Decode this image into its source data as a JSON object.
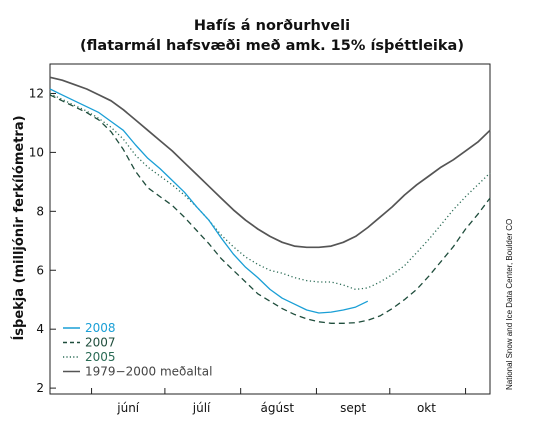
{
  "chart_data": {
    "type": "line",
    "title": "Hafís á norðurhveli",
    "subtitle": "(flatarmál hafsvæði með amk. 15% ísþéttleika)",
    "ylabel": "Ísþekja (milljónir ferkílómetra)",
    "xlabel": "",
    "credit": "National Snow and Ice Data Center, Boulder CO",
    "ylim": [
      2,
      13
    ],
    "yticks": [
      "2",
      "4",
      "6",
      "8",
      "10",
      "12"
    ],
    "x_unit": "day of year",
    "xlim": [
      135,
      315
    ],
    "month_labels": [
      "júní",
      "júlí",
      "ágúst",
      "sept",
      "okt"
    ],
    "month_label_x": [
      167,
      197,
      228,
      259,
      289
    ],
    "month_ticks": [
      152,
      182,
      213,
      244,
      274,
      305
    ],
    "legend_position": "bottom-left",
    "grid": false,
    "series": [
      {
        "name": "2008",
        "color": "#1a9fd6",
        "style": "solid",
        "x": [
          135,
          140,
          145,
          150,
          155,
          160,
          165,
          170,
          175,
          180,
          185,
          190,
          195,
          200,
          205,
          210,
          215,
          220,
          225,
          230,
          235,
          240,
          245,
          250,
          255,
          260,
          265
        ],
        "y": [
          12.15,
          11.95,
          11.75,
          11.55,
          11.35,
          11.05,
          10.75,
          10.25,
          9.8,
          9.45,
          9.05,
          8.65,
          8.15,
          7.7,
          7.1,
          6.55,
          6.1,
          5.75,
          5.35,
          5.05,
          4.85,
          4.65,
          4.55,
          4.58,
          4.65,
          4.75,
          4.95
        ]
      },
      {
        "name": "2007",
        "color": "#1f4d3c",
        "style": "dashed",
        "x": [
          135,
          140,
          145,
          150,
          155,
          160,
          165,
          170,
          175,
          180,
          185,
          190,
          195,
          200,
          205,
          210,
          215,
          220,
          225,
          230,
          235,
          240,
          245,
          250,
          255,
          260,
          265,
          270,
          275,
          280,
          285,
          290,
          295,
          300,
          305,
          310,
          315
        ],
        "y": [
          11.95,
          11.75,
          11.55,
          11.35,
          11.1,
          10.7,
          10.1,
          9.35,
          8.8,
          8.5,
          8.2,
          7.8,
          7.35,
          6.9,
          6.4,
          6.0,
          5.6,
          5.2,
          4.95,
          4.7,
          4.5,
          4.35,
          4.25,
          4.2,
          4.2,
          4.22,
          4.3,
          4.45,
          4.7,
          5.0,
          5.35,
          5.8,
          6.3,
          6.8,
          7.4,
          7.9,
          8.45
        ]
      },
      {
        "name": "2005",
        "color": "#2a6b55",
        "style": "dotted",
        "x": [
          135,
          140,
          145,
          150,
          155,
          160,
          165,
          170,
          175,
          180,
          185,
          190,
          195,
          200,
          205,
          210,
          215,
          220,
          225,
          230,
          235,
          240,
          245,
          250,
          255,
          260,
          265,
          270,
          275,
          280,
          285,
          290,
          295,
          300,
          305,
          310,
          315
        ],
        "y": [
          12.0,
          11.8,
          11.6,
          11.4,
          11.15,
          10.85,
          10.45,
          9.9,
          9.5,
          9.2,
          8.9,
          8.55,
          8.15,
          7.7,
          7.2,
          6.8,
          6.45,
          6.2,
          6.0,
          5.9,
          5.75,
          5.65,
          5.6,
          5.6,
          5.5,
          5.35,
          5.4,
          5.6,
          5.85,
          6.15,
          6.6,
          7.05,
          7.55,
          8.05,
          8.5,
          8.9,
          9.3
        ]
      },
      {
        "name": "1979−2000 meðaltal",
        "color": "#555555",
        "style": "solid",
        "x": [
          135,
          140,
          145,
          150,
          155,
          160,
          165,
          170,
          175,
          180,
          185,
          190,
          195,
          200,
          205,
          210,
          215,
          220,
          225,
          230,
          235,
          240,
          245,
          250,
          255,
          260,
          265,
          270,
          275,
          280,
          285,
          290,
          295,
          300,
          305,
          310,
          315
        ],
        "y": [
          12.55,
          12.45,
          12.3,
          12.15,
          11.95,
          11.75,
          11.45,
          11.1,
          10.75,
          10.4,
          10.05,
          9.65,
          9.25,
          8.85,
          8.45,
          8.05,
          7.7,
          7.4,
          7.15,
          6.95,
          6.82,
          6.78,
          6.78,
          6.82,
          6.95,
          7.15,
          7.45,
          7.8,
          8.15,
          8.55,
          8.9,
          9.2,
          9.5,
          9.75,
          10.05,
          10.35,
          10.75
        ]
      }
    ]
  }
}
